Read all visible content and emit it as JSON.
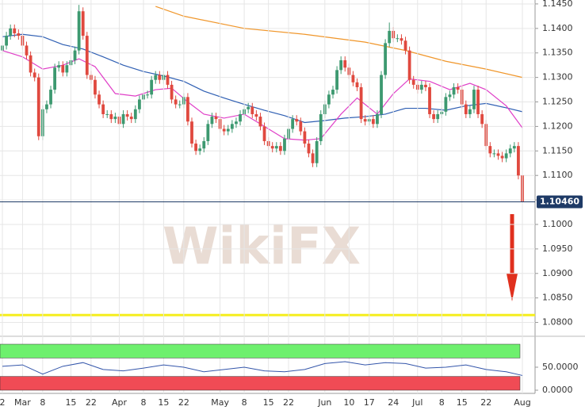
{
  "chart_data": {
    "type": "candlestick",
    "watermark": "WikiFX",
    "categories": [
      "2",
      null,
      null,
      null,
      null,
      "Mar",
      null,
      null,
      null,
      null,
      "8",
      null,
      null,
      null,
      null,
      null,
      null,
      "15",
      null,
      null,
      null,
      null,
      "22",
      null,
      null,
      null,
      null,
      null,
      null,
      "Apr",
      null,
      null,
      null,
      null,
      null,
      "8",
      null,
      null,
      null,
      null,
      "15",
      null,
      null,
      null,
      null,
      "22",
      null,
      null,
      null,
      null,
      null,
      null,
      null,
      null,
      "May",
      null,
      null,
      null,
      null,
      null,
      "8",
      null,
      null,
      null,
      null,
      null,
      "15",
      null,
      null,
      null,
      null,
      "22",
      null,
      null,
      null,
      null,
      null,
      null,
      null,
      null,
      "Jun",
      null,
      null,
      null,
      null,
      null,
      "10",
      null,
      null,
      null,
      null,
      "17",
      null,
      null,
      null,
      null,
      null,
      "24",
      null,
      null,
      null,
      null,
      null,
      "Jul",
      null,
      null,
      null,
      null,
      null,
      "8",
      null,
      null,
      null,
      null,
      "15",
      null,
      null,
      null,
      null,
      null,
      "22",
      null,
      null,
      null,
      null,
      null,
      null,
      null,
      null,
      "Aug"
    ],
    "open": [
      1.1355,
      1.1365,
      1.1385,
      1.14,
      1.139,
      1.1385,
      1.1365,
      1.1345,
      1.131,
      1.13,
      1.118,
      1.1235,
      1.1245,
      1.1275,
      1.132,
      1.1325,
      1.131,
      1.1325,
      1.1335,
      1.1355,
      1.1435,
      1.1385,
      1.1305,
      1.1295,
      1.1265,
      1.1245,
      1.1225,
      1.1225,
      1.1215,
      1.122,
      1.1205,
      1.1225,
      1.122,
      1.1215,
      1.1235,
      1.1255,
      1.1265,
      1.1265,
      1.1295,
      1.1305,
      1.1295,
      1.1305,
      1.1285,
      1.1255,
      1.1245,
      1.1245,
      1.126,
      1.121,
      1.1165,
      1.115,
      1.1155,
      1.117,
      1.1205,
      1.122,
      1.1215,
      1.1195,
      1.119,
      1.1195,
      1.1205,
      1.121,
      1.1225,
      1.1235,
      1.124,
      1.1225,
      1.122,
      1.12,
      1.117,
      1.116,
      1.1155,
      1.116,
      1.115,
      1.1175,
      1.1195,
      1.1215,
      1.121,
      1.119,
      1.1165,
      1.1145,
      1.1125,
      1.117,
      1.1225,
      1.1245,
      1.1265,
      1.1275,
      1.1315,
      1.1335,
      1.132,
      1.1305,
      1.129,
      1.128,
      1.1215,
      1.121,
      1.1215,
      1.1205,
      1.1225,
      1.1305,
      1.137,
      1.1395,
      1.138,
      1.138,
      1.1375,
      1.1355,
      1.1295,
      1.1285,
      1.1275,
      1.1285,
      1.128,
      1.1225,
      1.1215,
      1.1225,
      1.123,
      1.126,
      1.1265,
      1.128,
      1.1275,
      1.1245,
      1.1225,
      1.1235,
      1.1275,
      1.1225,
      1.1205,
      1.116,
      1.1145,
      1.1145,
      1.114,
      1.1135,
      1.1145,
      1.1155,
      1.116,
      1.11
    ],
    "high": [
      1.1373,
      1.1393,
      1.1408,
      1.1408,
      1.1398,
      1.1393,
      1.1373,
      1.1353,
      1.1318,
      1.1308,
      1.1243,
      1.1253,
      1.1283,
      1.1328,
      1.1333,
      1.1333,
      1.1333,
      1.1343,
      1.1363,
      1.1448,
      1.1443,
      1.1393,
      1.1313,
      1.1303,
      1.1273,
      1.1253,
      1.1233,
      1.1233,
      1.1228,
      1.1228,
      1.1233,
      1.1233,
      1.1228,
      1.1243,
      1.1263,
      1.1273,
      1.1273,
      1.1303,
      1.1313,
      1.1313,
      1.1313,
      1.1313,
      1.1293,
      1.1263,
      1.1253,
      1.1268,
      1.1268,
      1.1218,
      1.1173,
      1.1163,
      1.1178,
      1.1213,
      1.1228,
      1.1228,
      1.1223,
      1.1203,
      1.1203,
      1.1213,
      1.1218,
      1.1233,
      1.1243,
      1.1248,
      1.1248,
      1.1233,
      1.1228,
      1.1208,
      1.1178,
      1.1168,
      1.1168,
      1.1168,
      1.1183,
      1.1203,
      1.1223,
      1.1223,
      1.1218,
      1.1198,
      1.1173,
      1.1153,
      1.1178,
      1.1233,
      1.1253,
      1.1273,
      1.1283,
      1.1323,
      1.1343,
      1.1343,
      1.1328,
      1.1313,
      1.1298,
      1.1288,
      1.1223,
      1.1223,
      1.1223,
      1.1233,
      1.1313,
      1.1378,
      1.1412,
      1.1403,
      1.1388,
      1.1388,
      1.1383,
      1.1363,
      1.1303,
      1.1293,
      1.1293,
      1.1293,
      1.1288,
      1.1233,
      1.1233,
      1.1238,
      1.1268,
      1.1273,
      1.1288,
      1.1288,
      1.1283,
      1.1253,
      1.1243,
      1.1283,
      1.1283,
      1.1233,
      1.1213,
      1.1168,
      1.1153,
      1.1153,
      1.1148,
      1.1153,
      1.1163,
      1.1168,
      1.1168,
      1.1108
    ],
    "low": [
      1.1347,
      1.1357,
      1.1377,
      1.1382,
      1.1377,
      1.1357,
      1.1337,
      1.1302,
      1.1292,
      1.1172,
      1.1172,
      1.1227,
      1.1237,
      1.1267,
      1.1312,
      1.1302,
      1.1302,
      1.1317,
      1.1327,
      1.1347,
      1.1377,
      1.1297,
      1.1287,
      1.1257,
      1.1237,
      1.1217,
      1.1217,
      1.1207,
      1.1207,
      1.1197,
      1.1197,
      1.1212,
      1.1207,
      1.1207,
      1.1227,
      1.1247,
      1.1257,
      1.1257,
      1.1287,
      1.1287,
      1.1287,
      1.1277,
      1.1247,
      1.1237,
      1.1237,
      1.1237,
      1.1202,
      1.1157,
      1.1142,
      1.1142,
      1.1147,
      1.1162,
      1.1197,
      1.1207,
      1.1187,
      1.1182,
      1.1182,
      1.1187,
      1.1197,
      1.1202,
      1.1217,
      1.1227,
      1.1217,
      1.1212,
      1.1192,
      1.1162,
      1.1152,
      1.1147,
      1.1147,
      1.1142,
      1.1142,
      1.1167,
      1.1187,
      1.1202,
      1.1182,
      1.1157,
      1.1137,
      1.1117,
      1.1117,
      1.1162,
      1.1217,
      1.1237,
      1.1257,
      1.1267,
      1.1307,
      1.1312,
      1.1297,
      1.1282,
      1.1272,
      1.1207,
      1.1202,
      1.1202,
      1.1197,
      1.1197,
      1.1217,
      1.1297,
      1.1362,
      1.1372,
      1.1372,
      1.1367,
      1.1347,
      1.1287,
      1.1277,
      1.1267,
      1.1267,
      1.1272,
      1.1217,
      1.1207,
      1.1207,
      1.1217,
      1.1222,
      1.1252,
      1.1257,
      1.1267,
      1.1237,
      1.1217,
      1.1217,
      1.1227,
      1.1217,
      1.1197,
      1.1152,
      1.1137,
      1.1137,
      1.1132,
      1.1127,
      1.1127,
      1.1137,
      1.1147,
      1.1092,
      1.103
    ],
    "close": [
      1.1365,
      1.1385,
      1.14,
      1.139,
      1.1385,
      1.1365,
      1.1345,
      1.131,
      1.13,
      1.118,
      1.1235,
      1.1245,
      1.1275,
      1.132,
      1.1325,
      1.131,
      1.1325,
      1.1335,
      1.1355,
      1.1435,
      1.1385,
      1.1305,
      1.1295,
      1.1265,
      1.1245,
      1.1225,
      1.1225,
      1.1215,
      1.122,
      1.1205,
      1.1225,
      1.122,
      1.1215,
      1.1235,
      1.1255,
      1.1265,
      1.1265,
      1.1295,
      1.1305,
      1.1295,
      1.1305,
      1.1285,
      1.1255,
      1.1245,
      1.1245,
      1.126,
      1.121,
      1.1165,
      1.115,
      1.1155,
      1.117,
      1.1205,
      1.122,
      1.1215,
      1.1195,
      1.119,
      1.1195,
      1.1205,
      1.121,
      1.1225,
      1.1235,
      1.124,
      1.1225,
      1.122,
      1.12,
      1.117,
      1.116,
      1.1155,
      1.116,
      1.115,
      1.1175,
      1.1195,
      1.1215,
      1.121,
      1.119,
      1.1165,
      1.1145,
      1.1125,
      1.117,
      1.1225,
      1.1245,
      1.1265,
      1.1275,
      1.1315,
      1.1335,
      1.132,
      1.1305,
      1.129,
      1.128,
      1.1215,
      1.121,
      1.1215,
      1.1205,
      1.1225,
      1.1305,
      1.137,
      1.1395,
      1.138,
      1.138,
      1.1375,
      1.1355,
      1.1295,
      1.1285,
      1.1275,
      1.1285,
      1.128,
      1.1225,
      1.1215,
      1.1225,
      1.123,
      1.126,
      1.1265,
      1.128,
      1.1275,
      1.1245,
      1.1225,
      1.1235,
      1.1275,
      1.1225,
      1.1205,
      1.116,
      1.1145,
      1.1145,
      1.114,
      1.1135,
      1.1145,
      1.1155,
      1.116,
      1.11,
      1.1046
    ],
    "up_color": "#3d9970",
    "down_color": "#e0493f",
    "series": [
      {
        "color": "#2f5fb3",
        "x": [
          0,
          5,
          10,
          15,
          20,
          25,
          30,
          35,
          40,
          45,
          50,
          55,
          60,
          65,
          70,
          75,
          80,
          85,
          90,
          95,
          100,
          105,
          110,
          115,
          120,
          125,
          129
        ],
        "values": [
          1.1383,
          1.1388,
          1.1383,
          1.1367,
          1.1358,
          1.1342,
          1.1325,
          1.1312,
          1.1303,
          1.1292,
          1.1272,
          1.1258,
          1.1245,
          1.1233,
          1.1222,
          1.1208,
          1.1212,
          1.1217,
          1.122,
          1.1225,
          1.1237,
          1.1237,
          1.1233,
          1.1242,
          1.1247,
          1.1238,
          1.123
        ]
      },
      {
        "color": "#e040c8",
        "x": [
          0,
          5,
          10,
          15,
          19,
          23,
          28,
          33,
          38,
          42,
          46,
          50,
          55,
          60,
          65,
          70,
          75,
          79,
          84,
          88,
          93,
          97,
          101,
          106,
          111,
          116,
          120,
          125,
          129
        ],
        "values": [
          1.1355,
          1.1342,
          1.1317,
          1.1325,
          1.1338,
          1.1322,
          1.1267,
          1.1262,
          1.1275,
          1.1278,
          1.125,
          1.1225,
          1.1217,
          1.1225,
          1.12,
          1.1175,
          1.1172,
          1.1175,
          1.1225,
          1.1258,
          1.1225,
          1.1267,
          1.1297,
          1.1292,
          1.1275,
          1.1288,
          1.1275,
          1.1242,
          1.1197
        ]
      },
      {
        "color": "#f0962a",
        "x": [
          38,
          45,
          60,
          75,
          90,
          100,
          110,
          120,
          129
        ],
        "values": [
          1.1445,
          1.1425,
          1.14,
          1.1388,
          1.1372,
          1.1355,
          1.1333,
          1.1317,
          1.13
        ]
      }
    ],
    "last_price": {
      "value": 1.1046,
      "label": "1.10460"
    },
    "support_level": 1.0815,
    "support_color": "#f5ee1e",
    "ylim": [
      1.0775,
      1.1458
    ],
    "yticks": [
      {
        "value": 1.145,
        "label": "1.1450"
      },
      {
        "value": 1.14,
        "label": "1.1400"
      },
      {
        "value": 1.135,
        "label": "1.1350"
      },
      {
        "value": 1.13,
        "label": "1.1300"
      },
      {
        "value": 1.125,
        "label": "1.1250"
      },
      {
        "value": 1.12,
        "label": "1.1200"
      },
      {
        "value": 1.115,
        "label": "1.1150"
      },
      {
        "value": 1.11,
        "label": "1.1100"
      },
      {
        "value": 1.105,
        "label": "1.1050"
      },
      {
        "value": 1.1,
        "label": "1.1000"
      },
      {
        "value": 1.095,
        "label": "1.0950"
      },
      {
        "value": 1.09,
        "label": "1.0900"
      },
      {
        "value": 1.085,
        "label": "1.0850"
      },
      {
        "value": 1.08,
        "label": "1.0800"
      }
    ],
    "grid": true,
    "oscillator": {
      "color": "#3355aa",
      "x": [
        0,
        5,
        10,
        15,
        20,
        25,
        30,
        35,
        40,
        45,
        50,
        55,
        60,
        65,
        70,
        75,
        80,
        85,
        90,
        95,
        100,
        105,
        110,
        115,
        120,
        125,
        129
      ],
      "values": [
        52,
        55,
        35,
        52,
        60,
        45,
        42,
        48,
        55,
        50,
        40,
        45,
        50,
        42,
        40,
        45,
        58,
        62,
        55,
        60,
        58,
        48,
        50,
        55,
        45,
        40,
        32
      ],
      "ylim": [
        0,
        100
      ],
      "yticks": [
        {
          "value": 50,
          "label": "50.0000"
        },
        {
          "value": 0,
          "label": "0.0000"
        }
      ],
      "overbought": 70,
      "oversold": 30,
      "overbought_color": "#6ef06e",
      "oversold_color": "#f04b55"
    }
  }
}
